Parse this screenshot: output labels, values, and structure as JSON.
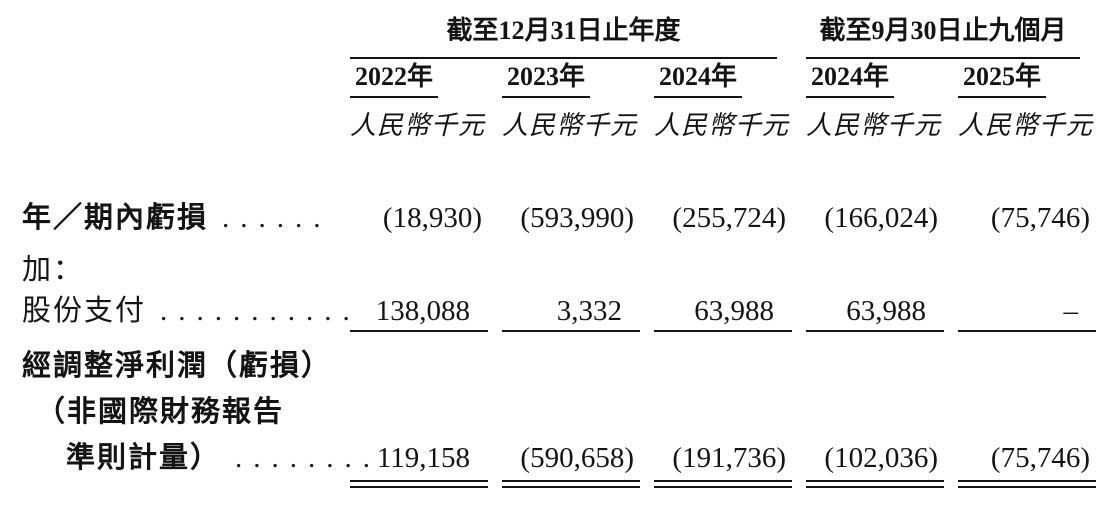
{
  "table": {
    "group_headers": {
      "annual": "截至12月31日止年度",
      "nine_months": "截至9月30日止九個月"
    },
    "year_headers": [
      "2022年",
      "2023年",
      "2024年",
      "2024年",
      "2025年"
    ],
    "unit_label": "人民幣千元",
    "units": [
      "人民幣千元",
      "人民幣千元",
      "人民幣千元",
      "人民幣千元",
      "人民幣千元"
    ],
    "rows": {
      "loss": {
        "label": "年／期內虧損",
        "dots": "......",
        "values": [
          "(18,930)",
          "(593,990)",
          "(255,724)",
          "(166,024)",
          "(75,746)"
        ]
      },
      "add": {
        "label": "加："
      },
      "share": {
        "label": "股份支付",
        "dots": "...........",
        "values": [
          "138,088",
          "3,332",
          "63,988",
          "63,988",
          "–"
        ]
      },
      "adjusted": {
        "label_line1": "經調整淨利潤（虧損）",
        "label_line2": "（非國際財務報告",
        "label_line3": "準則計量）",
        "dots": "........",
        "values": [
          "119,158",
          "(590,658)",
          "(191,736)",
          "(102,036)",
          "(75,746)"
        ]
      }
    },
    "colors": {
      "text": "#141414",
      "rule": "#141414",
      "background": "#ffffff"
    }
  }
}
